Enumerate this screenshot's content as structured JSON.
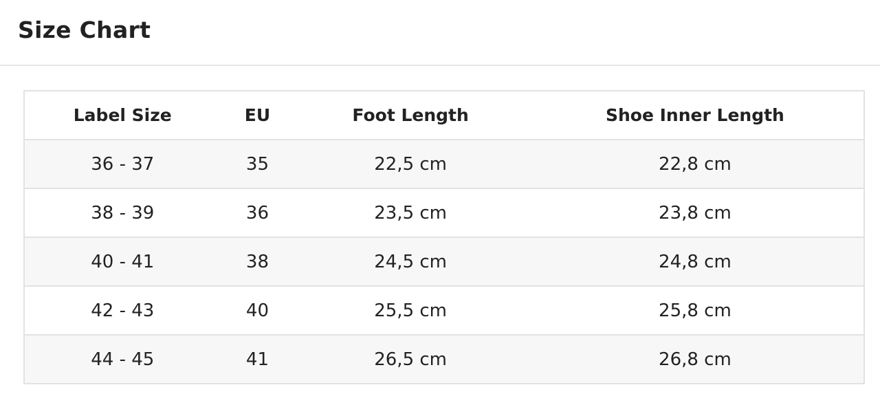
{
  "header": {
    "title": "Size Chart"
  },
  "table": {
    "columns": [
      "Label Size",
      "EU",
      "Foot Length",
      "Shoe Inner Length"
    ],
    "rows": [
      [
        "36 - 37",
        "35",
        "22,5 cm",
        "22,8 cm"
      ],
      [
        "38 - 39",
        "36",
        "23,5 cm",
        "23,8 cm"
      ],
      [
        "40 - 41",
        "38",
        "24,5 cm",
        "24,8 cm"
      ],
      [
        "42 - 43",
        "40",
        "25,5 cm",
        "25,8 cm"
      ],
      [
        "44 - 45",
        "41",
        "26,5 cm",
        "26,8 cm"
      ]
    ]
  }
}
